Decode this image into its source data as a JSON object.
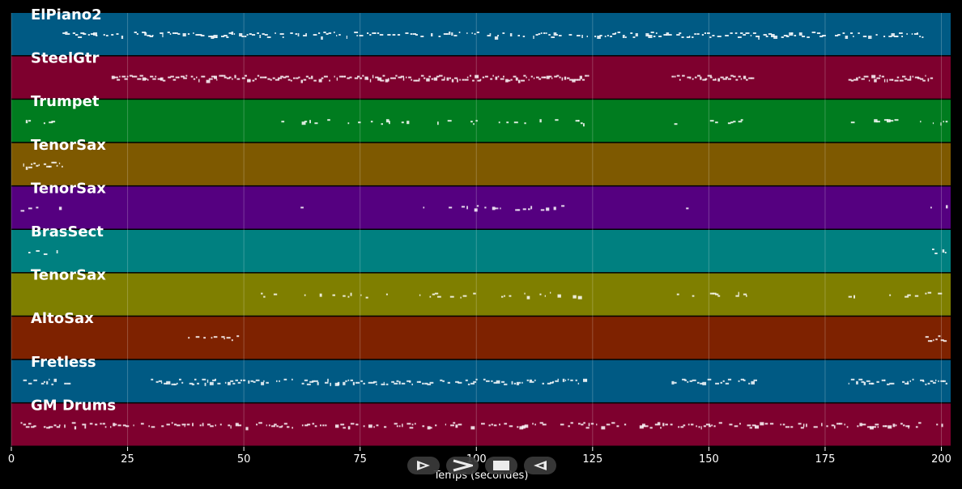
{
  "tracks": [
    {
      "name": "ElPiano2",
      "color": "#005a84"
    },
    {
      "name": "SteelGtr",
      "color": "#7e002e"
    },
    {
      "name": "Trumpet",
      "color": "#007c1f"
    },
    {
      "name": "TenorSax",
      "color": "#7e5900"
    },
    {
      "name": "TenorSax",
      "color": "#550080"
    },
    {
      "name": "BrasSect",
      "color": "#008080"
    },
    {
      "name": "TenorSax",
      "color": "#7f7f00"
    },
    {
      "name": "AltoSax",
      "color": "#7e2200"
    },
    {
      "name": "Fretless",
      "color": "#005a84"
    },
    {
      "name": "GM Drums",
      "color": "#7e002e"
    }
  ],
  "x_axis": {
    "label": "Temps (secondes)",
    "ticks": [
      "0",
      "25",
      "50",
      "75",
      "100",
      "125",
      "150",
      "175",
      "200"
    ],
    "range": [
      0,
      202
    ]
  },
  "controls": {
    "play_icon": "play-outline-icon",
    "forward_icon": "forward-chevron-icon",
    "stop_icon": "stop-square-icon",
    "back_icon": "back-triangle-icon"
  }
}
